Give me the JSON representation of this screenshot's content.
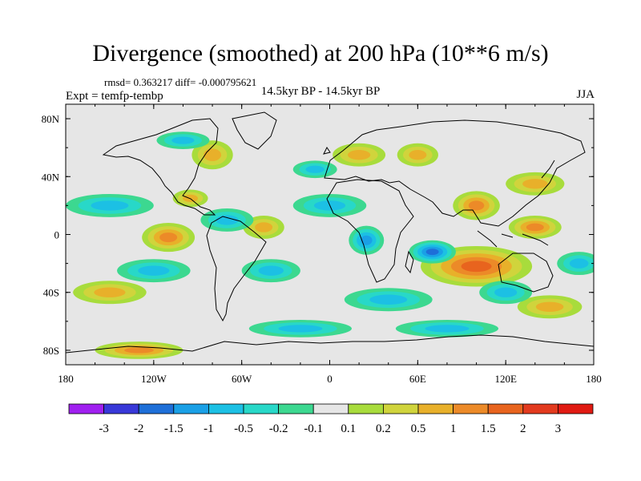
{
  "chart_data": {
    "type": "heatmap",
    "title": "Divergence (smoothed) at 200 hPa (10**6 m/s)",
    "stats": "rmsd= 0.363217 diff= -0.000795621",
    "left_label": "Expt = temfp-tembp",
    "center_label": "14.5kyr BP - 14.5kyr BP",
    "right_label": "JJA",
    "x_ticks": [
      "180",
      "120W",
      "60W",
      "0",
      "60E",
      "120E",
      "180"
    ],
    "y_ticks": [
      "80N",
      "40N",
      "0",
      "40S",
      "80S"
    ],
    "xlim": [
      -180,
      180
    ],
    "ylim": [
      -90,
      90
    ],
    "colorbar_labels": [
      "-3",
      "-2",
      "-1.5",
      "-1",
      "-0.5",
      "-0.2",
      "-0.1",
      "0.1",
      "0.2",
      "0.5",
      "1",
      "1.5",
      "2",
      "3"
    ],
    "colorbar_colors": [
      "#a020f0",
      "#3838d8",
      "#1e6fd8",
      "#1aa0e6",
      "#1cc0e4",
      "#28d8c8",
      "#3cd890",
      "#e6e6e6",
      "#a8dc3c",
      "#d0d43c",
      "#e8b02a",
      "#ec8a28",
      "#e8641e",
      "#e23a1e",
      "#e01a12"
    ],
    "field_blobs": [
      {
        "lon": 95,
        "lat": -17,
        "rx": 30,
        "ry": 8,
        "v": 3.2
      },
      {
        "lon": 100,
        "lat": -22,
        "rx": 38,
        "ry": 14,
        "v": 1.6
      },
      {
        "lon": 70,
        "lat": -12,
        "rx": 16,
        "ry": 8,
        "v": -1.8
      },
      {
        "lon": 25,
        "lat": -4,
        "rx": 12,
        "ry": 10,
        "v": -1.2
      },
      {
        "lon": 100,
        "lat": 20,
        "rx": 16,
        "ry": 10,
        "v": 1.1
      },
      {
        "lon": 140,
        "lat": 5,
        "rx": 18,
        "ry": 8,
        "v": 1.0
      },
      {
        "lon": 140,
        "lat": 35,
        "rx": 20,
        "ry": 8,
        "v": 0.6
      },
      {
        "lon": -110,
        "lat": -2,
        "rx": 18,
        "ry": 10,
        "v": 1.0
      },
      {
        "lon": -45,
        "lat": 5,
        "rx": 14,
        "ry": 8,
        "v": 0.8
      },
      {
        "lon": -80,
        "lat": 55,
        "rx": 14,
        "ry": 10,
        "v": 0.9
      },
      {
        "lon": 20,
        "lat": 55,
        "rx": 18,
        "ry": 8,
        "v": 0.7
      },
      {
        "lon": -130,
        "lat": -80,
        "rx": 30,
        "ry": 6,
        "v": 1.2
      },
      {
        "lon": -95,
        "lat": 25,
        "rx": 12,
        "ry": 6,
        "v": 0.9
      },
      {
        "lon": 60,
        "lat": 55,
        "rx": 14,
        "ry": 8,
        "v": 0.6
      },
      {
        "lon": -150,
        "lat": -40,
        "rx": 25,
        "ry": 8,
        "v": 0.6
      },
      {
        "lon": 150,
        "lat": -50,
        "rx": 22,
        "ry": 8,
        "v": 0.6
      },
      {
        "lon": -150,
        "lat": 20,
        "rx": 30,
        "ry": 8,
        "v": -0.7
      },
      {
        "lon": -120,
        "lat": -25,
        "rx": 25,
        "ry": 8,
        "v": -0.8
      },
      {
        "lon": -70,
        "lat": 10,
        "rx": 18,
        "ry": 8,
        "v": -0.6
      },
      {
        "lon": 0,
        "lat": 20,
        "rx": 25,
        "ry": 8,
        "v": -0.5
      },
      {
        "lon": 40,
        "lat": -45,
        "rx": 30,
        "ry": 8,
        "v": -0.6
      },
      {
        "lon": -20,
        "lat": -65,
        "rx": 35,
        "ry": 6,
        "v": -0.9
      },
      {
        "lon": 80,
        "lat": -65,
        "rx": 35,
        "ry": 6,
        "v": -0.7
      },
      {
        "lon": -100,
        "lat": 65,
        "rx": 18,
        "ry": 6,
        "v": -0.6
      },
      {
        "lon": -40,
        "lat": -25,
        "rx": 20,
        "ry": 8,
        "v": -0.5
      },
      {
        "lon": 170,
        "lat": -20,
        "rx": 15,
        "ry": 8,
        "v": -0.8
      },
      {
        "lon": 120,
        "lat": -40,
        "rx": 18,
        "ry": 8,
        "v": -0.6
      },
      {
        "lon": -10,
        "lat": 45,
        "rx": 15,
        "ry": 6,
        "v": -0.5
      }
    ]
  }
}
